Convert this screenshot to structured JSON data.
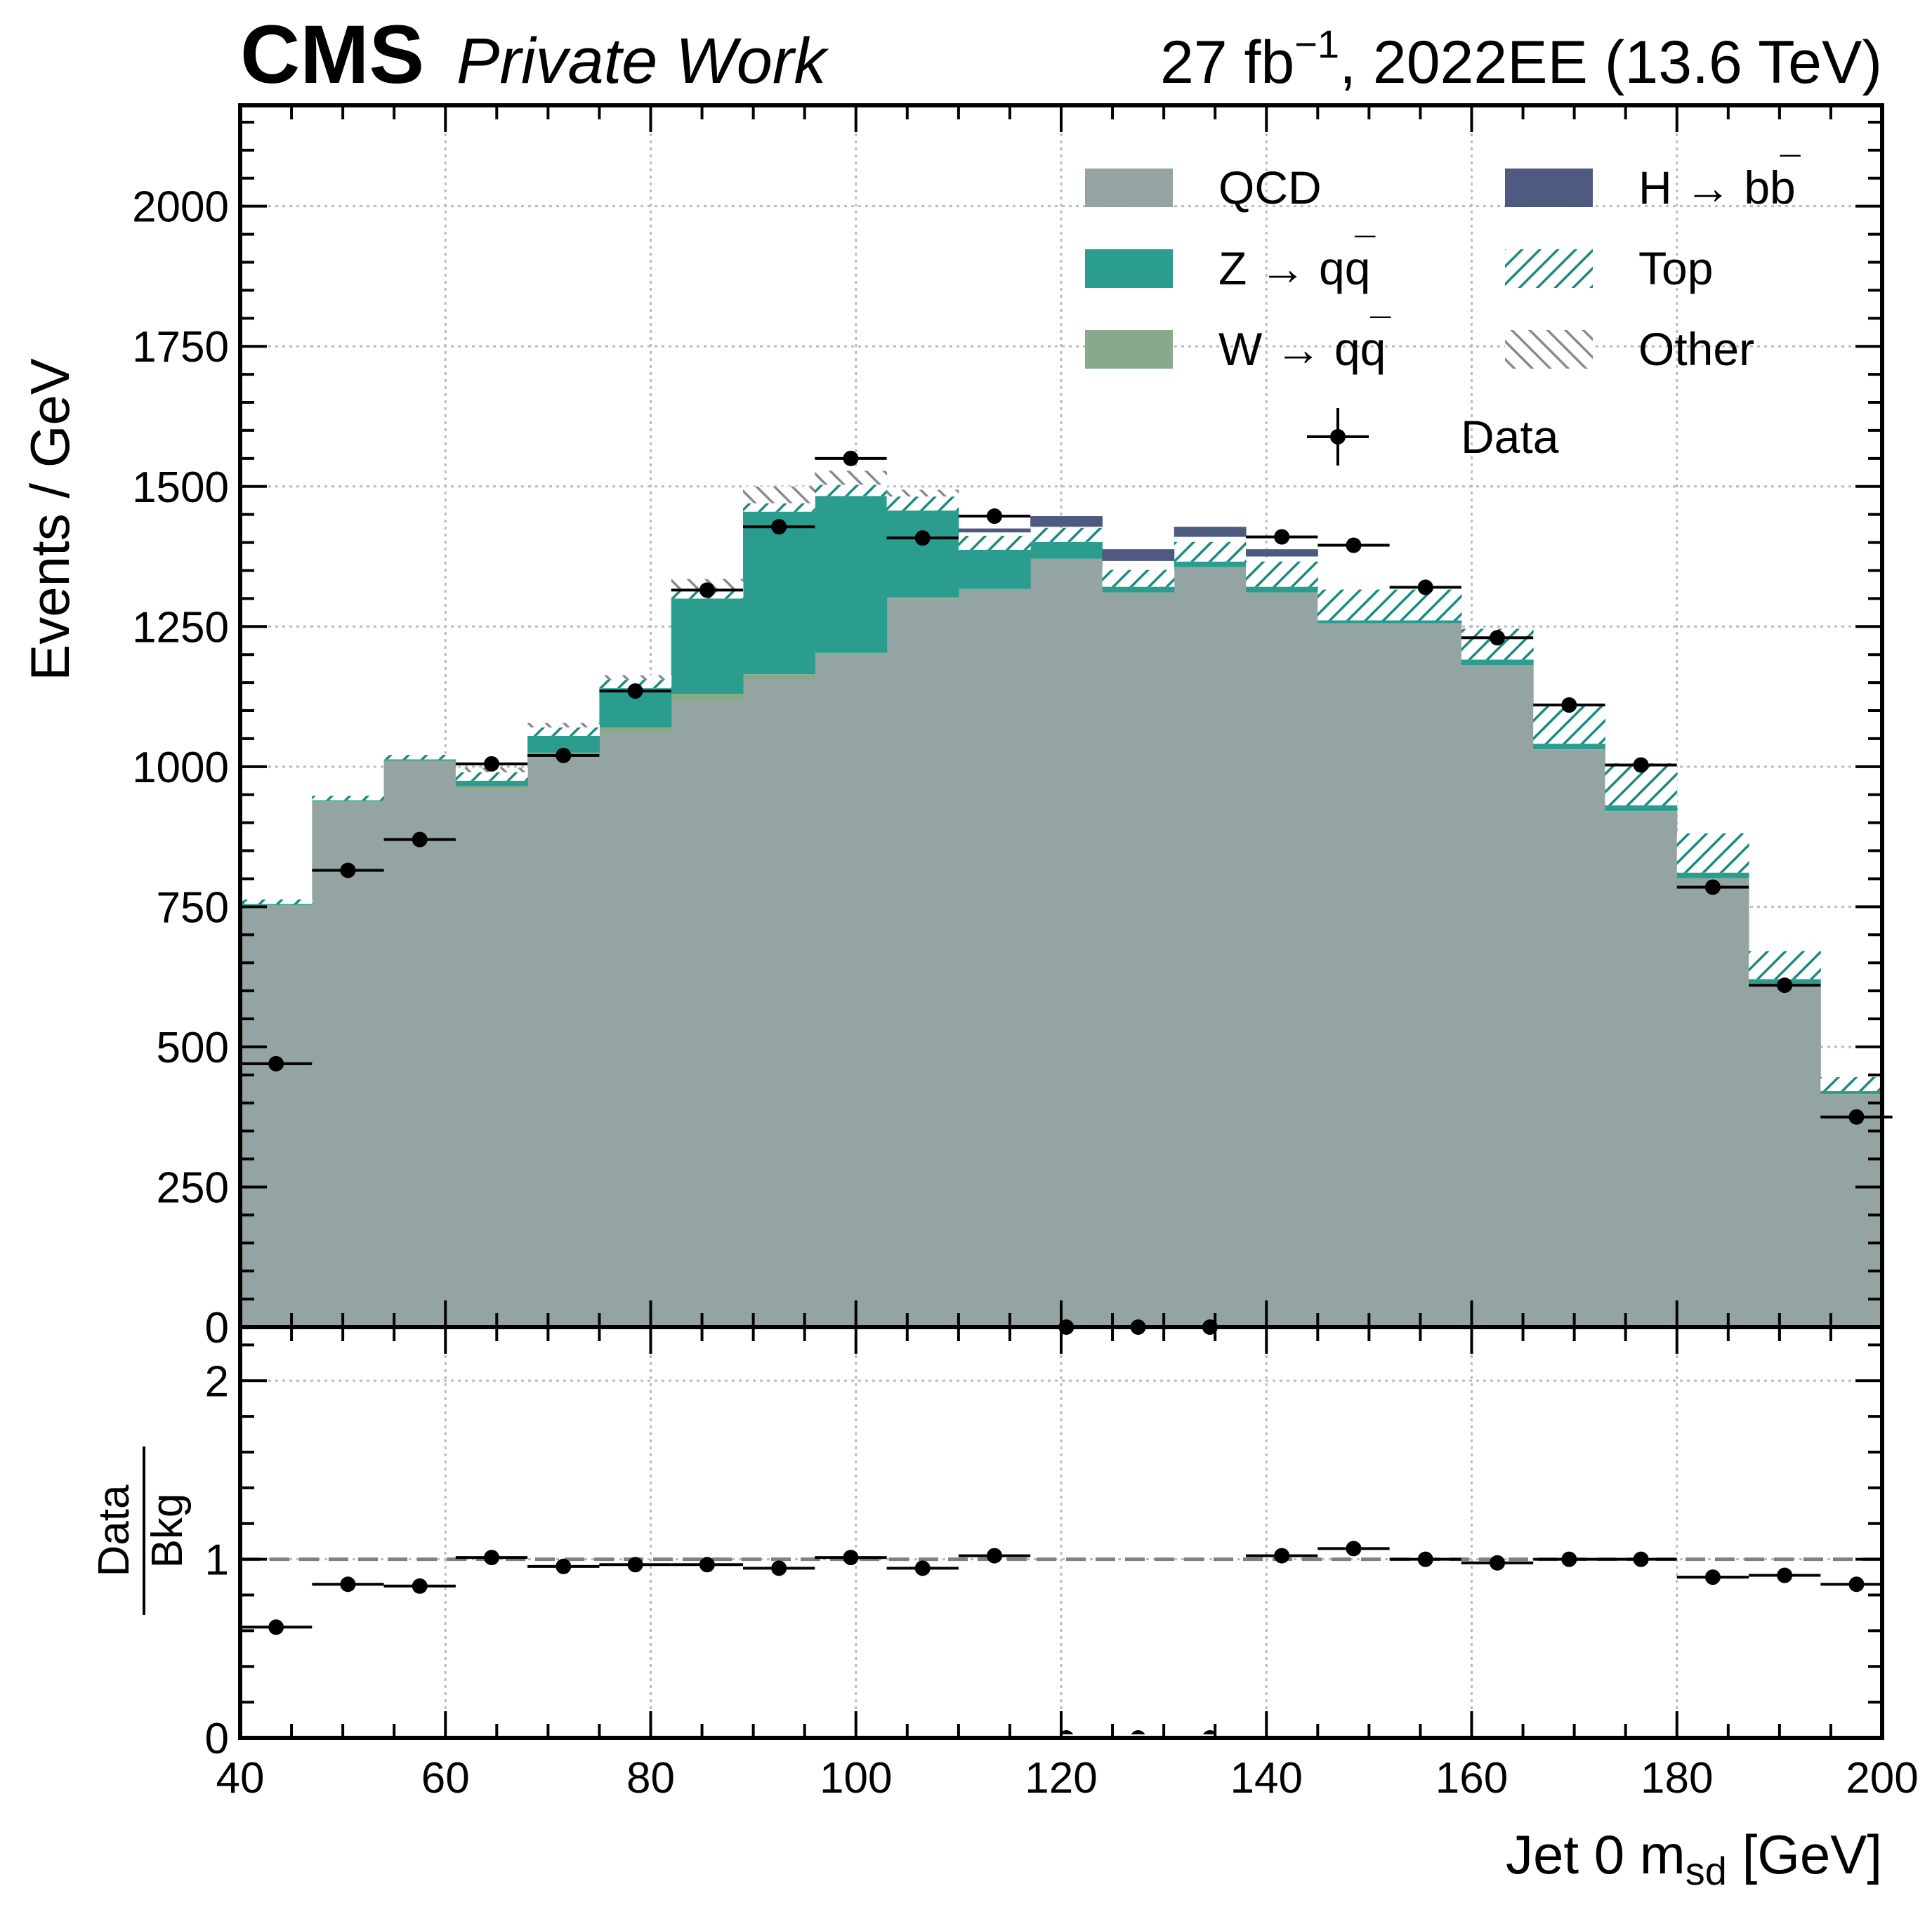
{
  "header": {
    "experiment": "CMS",
    "status": "Private Work",
    "lumi_prefix": "27 fb",
    "lumi_exp": "−1",
    "lumi_suffix": ", 2022EE (13.6 TeV)"
  },
  "colors": {
    "QCD": "#94a4a2",
    "Zqq": "#2a9d8f",
    "Wqq": "#88aa8a",
    "Hbb": "#4e5a80",
    "Top_hatch": "#1a8a82",
    "Other_hatch": "#8a8a8a",
    "data": "#000000",
    "grid": "#bbbbbb",
    "ref_line": "#808080"
  },
  "legend": {
    "placement": "top-right",
    "entries": [
      {
        "key": "QCD",
        "label_main": "QCD",
        "label_accent": ""
      },
      {
        "key": "Hbb",
        "label_main": "H → bb",
        "label_accent": "¯"
      },
      {
        "key": "Zqq",
        "label_main": "Z → qq",
        "label_accent": "¯"
      },
      {
        "key": "Top",
        "label_main": "Top",
        "label_accent": ""
      },
      {
        "key": "Wqq",
        "label_main": "W → qq",
        "label_accent": "¯"
      },
      {
        "key": "Other",
        "label_main": "Other",
        "label_accent": ""
      },
      {
        "key": "Data",
        "label_main": "Data",
        "label_accent": ""
      }
    ]
  },
  "chart_data": [
    {
      "type": "bar",
      "subtype": "stacked-histogram",
      "ylabel": "Events / GeV",
      "xlim": [
        40,
        200
      ],
      "ylim": [
        0,
        2180
      ],
      "grid": true,
      "x_bin_edges": [
        40,
        47,
        54,
        61,
        68,
        75,
        82,
        89,
        96,
        103,
        110,
        117,
        124,
        131,
        138,
        145,
        152,
        159,
        166,
        173,
        180,
        187,
        194,
        201
      ],
      "y_ticks": [
        0,
        250,
        500,
        750,
        1000,
        1250,
        1500,
        1750,
        2000
      ],
      "y_tick_labels": [
        "0",
        "250",
        "500",
        "750",
        "1000",
        "1250",
        "1500",
        "1750",
        "2000"
      ],
      "series": [
        {
          "name": "QCD",
          "values": [
            750,
            935,
            1008,
            960,
            1015,
            1060,
            1115,
            1155,
            1200,
            1300,
            1315,
            1370,
            1310,
            1355,
            1310,
            1255,
            1255,
            1180,
            1030,
            920,
            800,
            610,
            415
          ]
        },
        {
          "name": "W → qq̄",
          "values": [
            3,
            3,
            3,
            5,
            10,
            10,
            15,
            10,
            3,
            2,
            2,
            1,
            1,
            1,
            1,
            1,
            1,
            1,
            1,
            1,
            1,
            1,
            1
          ]
        },
        {
          "name": "Z → qq̄",
          "values": [
            2,
            2,
            2,
            10,
            30,
            70,
            170,
            290,
            280,
            155,
            70,
            30,
            10,
            10,
            10,
            5,
            5,
            10,
            10,
            10,
            10,
            10,
            5
          ]
        },
        {
          "name": "H → bb̄",
          "values": [
            0,
            0,
            0,
            0,
            0,
            0,
            0,
            0,
            0,
            0,
            0,
            0,
            0,
            0,
            0,
            0,
            0,
            0,
            0,
            0,
            0,
            0,
            0
          ]
        },
        {
          "name": "Top",
          "values": [
            8,
            8,
            8,
            15,
            15,
            15,
            15,
            15,
            20,
            25,
            25,
            25,
            30,
            35,
            45,
            55,
            55,
            55,
            70,
            75,
            70,
            50,
            25
          ]
        },
        {
          "name": "Other",
          "values": [
            0,
            0,
            0,
            8,
            8,
            8,
            20,
            30,
            25,
            12,
            0,
            0,
            0,
            0,
            0,
            0,
            0,
            0,
            0,
            0,
            0,
            0,
            0
          ]
        }
      ],
      "hbb_bands": [
        {
          "bin": 10,
          "bottom": 1418,
          "top": 1425
        },
        {
          "bin": 11,
          "bottom": 1428,
          "top": 1447
        },
        {
          "bin": 12,
          "bottom": 1367,
          "top": 1388
        },
        {
          "bin": 13,
          "bottom": 1410,
          "top": 1428
        },
        {
          "bin": 14,
          "bottom": 1375,
          "top": 1388
        }
      ],
      "data": {
        "name": "Data",
        "x": [
          43.5,
          50.5,
          57.5,
          64.5,
          71.5,
          78.5,
          85.5,
          92.5,
          99.5,
          106.5,
          113.5,
          120.5,
          127.5,
          134.5,
          141.5,
          148.5,
          155.5,
          162.5,
          169.5,
          176.5,
          183.5,
          190.5,
          197.5
        ],
        "values": [
          470,
          815,
          870,
          1005,
          1020,
          1135,
          1315,
          1428,
          1550,
          1408,
          1447,
          0,
          0,
          0,
          1410,
          1395,
          1320,
          1230,
          1110,
          1003,
          785,
          610,
          375
        ]
      }
    },
    {
      "type": "scatter",
      "subtype": "ratio",
      "ylabel_num": "Data",
      "ylabel_den": "Bkg",
      "xlabel_main": "Jet 0 m",
      "xlabel_sub": "sd",
      "xlabel_unit": " [GeV]",
      "xlim": [
        40,
        200
      ],
      "ylim": [
        0,
        2.3
      ],
      "reference_line": 1.0,
      "grid": true,
      "x_ticks": [
        40,
        60,
        80,
        100,
        120,
        140,
        160,
        180,
        200
      ],
      "x_tick_labels": [
        "40",
        "60",
        "80",
        "100",
        "120",
        "140",
        "160",
        "180",
        "200"
      ],
      "y_ticks": [
        0,
        1,
        2
      ],
      "y_tick_labels": [
        "0",
        "1",
        "2"
      ],
      "x": [
        43.5,
        50.5,
        57.5,
        64.5,
        71.5,
        78.5,
        85.5,
        92.5,
        99.5,
        106.5,
        113.5,
        120.5,
        127.5,
        134.5,
        141.5,
        148.5,
        155.5,
        162.5,
        169.5,
        176.5,
        183.5,
        190.5,
        197.5
      ],
      "values": [
        0.62,
        0.86,
        0.85,
        1.01,
        0.96,
        0.97,
        0.97,
        0.95,
        1.01,
        0.95,
        1.02,
        0,
        0,
        0,
        1.02,
        1.06,
        1.0,
        0.98,
        1.0,
        1.0,
        0.9,
        0.91,
        0.86
      ]
    }
  ]
}
